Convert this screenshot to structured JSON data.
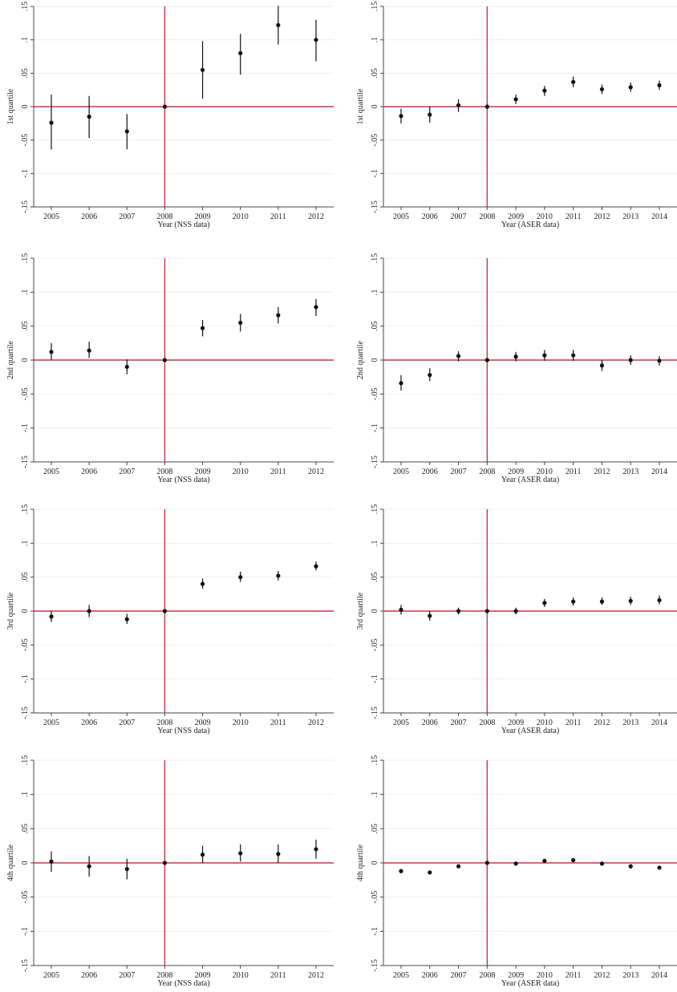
{
  "figure": {
    "colors": {
      "reference_line": "#c8324f",
      "point": "#111111",
      "axis": "#444444",
      "grid": "#eeeeee"
    },
    "ylim": [
      -0.15,
      0.15
    ],
    "ytick_values": [
      0.15,
      0.1,
      0.05,
      0,
      -0.05,
      -0.1,
      -0.15
    ],
    "ytick_labels": [
      ".15",
      ".1",
      ".05",
      "0",
      "-.05",
      "-.1",
      "-.15"
    ],
    "reference_year": "2008",
    "reference_y": 0
  },
  "chart_data": [
    {
      "type": "scatter",
      "ylabel": "1st quartile",
      "xlabel": "Year   (NSS data)",
      "x": [
        "2005",
        "2006",
        "2007",
        "2008",
        "2009",
        "2010",
        "2011",
        "2012"
      ],
      "estimates": [
        -0.024,
        -0.015,
        -0.037,
        0,
        0.055,
        0.08,
        0.122,
        0.1
      ],
      "ci_low": [
        -0.064,
        -0.047,
        -0.064,
        0,
        0.012,
        0.048,
        0.093,
        0.068
      ],
      "ci_high": [
        0.018,
        0.016,
        -0.011,
        0,
        0.098,
        0.109,
        0.151,
        0.13
      ]
    },
    {
      "type": "scatter",
      "ylabel": "1st quartile",
      "xlabel": "Year   (ASER data)",
      "x": [
        "2005",
        "2006",
        "2007",
        "2008",
        "2009",
        "2010",
        "2011",
        "2012",
        "2013",
        "2014"
      ],
      "estimates": [
        -0.014,
        -0.012,
        0.002,
        0,
        0.011,
        0.024,
        0.037,
        0.026,
        0.029,
        0.032
      ],
      "ci_low": [
        -0.025,
        -0.024,
        -0.008,
        0,
        0.004,
        0.016,
        0.029,
        0.019,
        0.022,
        0.025
      ],
      "ci_high": [
        -0.003,
        0.0,
        0.011,
        0,
        0.018,
        0.031,
        0.045,
        0.033,
        0.036,
        0.039
      ]
    },
    {
      "type": "scatter",
      "ylabel": "2nd quartile",
      "xlabel": "Year   (NSS data)",
      "x": [
        "2005",
        "2006",
        "2007",
        "2008",
        "2009",
        "2010",
        "2011",
        "2012"
      ],
      "estimates": [
        0.012,
        0.014,
        -0.01,
        0,
        0.047,
        0.055,
        0.066,
        0.078
      ],
      "ci_low": [
        0.0,
        0.003,
        -0.021,
        0,
        0.035,
        0.042,
        0.054,
        0.065
      ],
      "ci_high": [
        0.025,
        0.027,
        0.001,
        0,
        0.059,
        0.068,
        0.078,
        0.09
      ]
    },
    {
      "type": "scatter",
      "ylabel": "2nd quartile",
      "xlabel": "Year   (ASER data)",
      "x": [
        "2005",
        "2006",
        "2007",
        "2008",
        "2009",
        "2010",
        "2011",
        "2012",
        "2013",
        "2014"
      ],
      "estimates": [
        -0.034,
        -0.022,
        0.006,
        0,
        0.005,
        0.007,
        0.007,
        -0.008,
        0.0,
        -0.001
      ],
      "ci_low": [
        -0.045,
        -0.031,
        -0.002,
        0,
        -0.002,
        -0.001,
        -0.001,
        -0.016,
        -0.007,
        -0.008
      ],
      "ci_high": [
        -0.022,
        -0.012,
        0.013,
        0,
        0.012,
        0.015,
        0.015,
        0.0,
        0.007,
        0.006
      ]
    },
    {
      "type": "scatter",
      "ylabel": "3rd quartile",
      "xlabel": "Year   (NSS data)",
      "x": [
        "2005",
        "2006",
        "2007",
        "2008",
        "2009",
        "2010",
        "2011",
        "2012"
      ],
      "estimates": [
        -0.008,
        0.0,
        -0.012,
        0,
        0.04,
        0.05,
        0.052,
        0.066
      ],
      "ci_low": [
        -0.016,
        -0.009,
        -0.019,
        0,
        0.033,
        0.043,
        0.045,
        0.06
      ],
      "ci_high": [
        0.0,
        0.009,
        -0.004,
        0,
        0.048,
        0.058,
        0.059,
        0.073
      ]
    },
    {
      "type": "scatter",
      "ylabel": "3rd quartile",
      "xlabel": "Year   (ASER data)",
      "x": [
        "2005",
        "2006",
        "2007",
        "2008",
        "2009",
        "2010",
        "2011",
        "2012",
        "2013",
        "2014"
      ],
      "estimates": [
        0.002,
        -0.007,
        0.0,
        0,
        0.0,
        0.012,
        0.014,
        0.014,
        0.015,
        0.016
      ],
      "ci_low": [
        -0.005,
        -0.014,
        -0.005,
        0,
        -0.005,
        0.006,
        0.008,
        0.009,
        0.009,
        0.01
      ],
      "ci_high": [
        0.009,
        0.0,
        0.005,
        0,
        0.005,
        0.018,
        0.02,
        0.02,
        0.021,
        0.023
      ]
    },
    {
      "type": "scatter",
      "ylabel": "4th quartile",
      "xlabel": "Year   (NSS data)",
      "x": [
        "2005",
        "2006",
        "2007",
        "2008",
        "2009",
        "2010",
        "2011",
        "2012"
      ],
      "estimates": [
        0.002,
        -0.005,
        -0.009,
        0,
        0.012,
        0.014,
        0.013,
        0.02
      ],
      "ci_low": [
        -0.013,
        -0.02,
        -0.024,
        0,
        0.0,
        0.002,
        0.0,
        0.006
      ],
      "ci_high": [
        0.017,
        0.01,
        0.006,
        0,
        0.025,
        0.027,
        0.027,
        0.034
      ]
    },
    {
      "type": "scatter",
      "ylabel": "4th quartile",
      "xlabel": "Year   (ASER data)",
      "x": [
        "2005",
        "2006",
        "2007",
        "2008",
        "2009",
        "2010",
        "2011",
        "2012",
        "2013",
        "2014"
      ],
      "estimates": [
        -0.012,
        -0.014,
        -0.005,
        0,
        -0.001,
        0.003,
        0.004,
        -0.001,
        -0.005,
        -0.007
      ],
      "ci_low": [
        -0.015,
        -0.017,
        -0.007,
        0,
        -0.003,
        0.0,
        0.001,
        -0.003,
        -0.008,
        -0.01
      ],
      "ci_high": [
        -0.009,
        -0.011,
        -0.003,
        0,
        0.001,
        0.006,
        0.007,
        0.001,
        -0.002,
        -0.004
      ]
    }
  ]
}
